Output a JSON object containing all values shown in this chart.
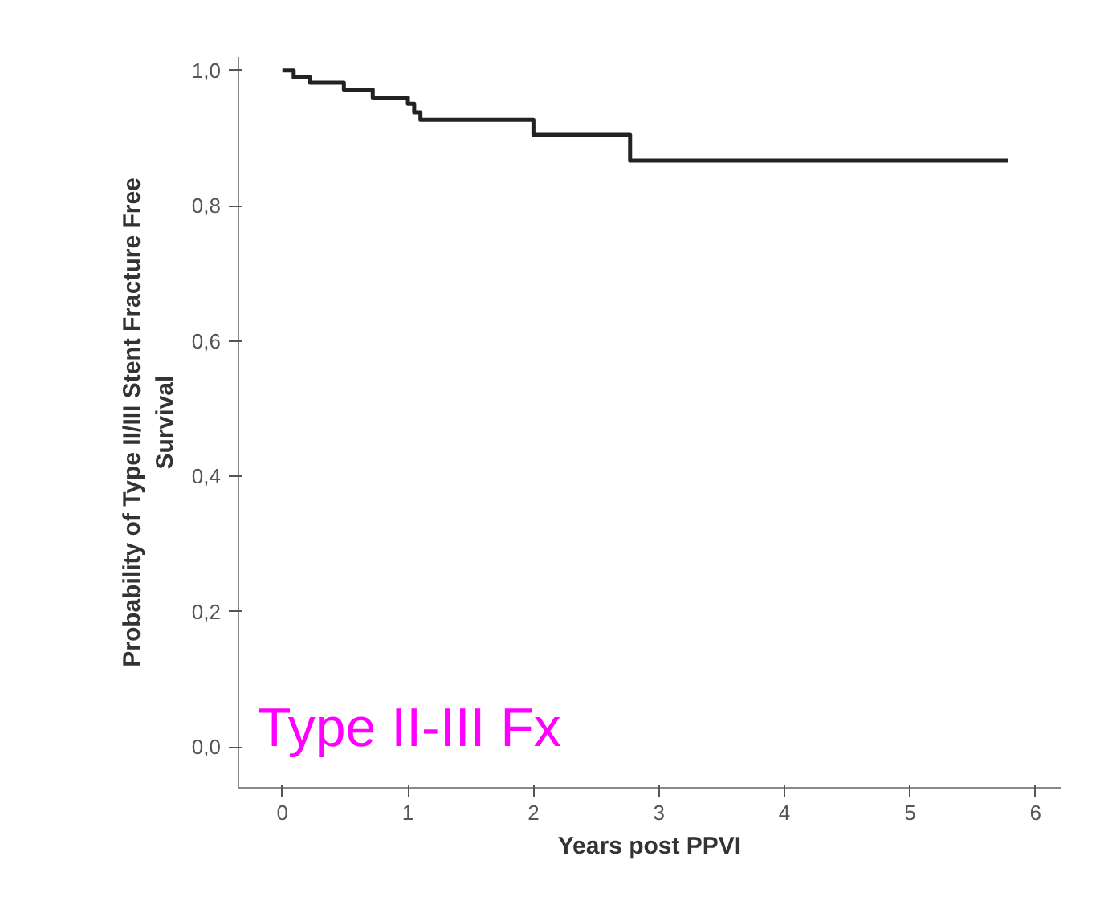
{
  "chart_data": {
    "type": "step",
    "xlabel": "Years post PPVI",
    "ylabel": "Probability of Type II/III Stent Fracture Free\nSurvival",
    "x": [
      0,
      0.09,
      0.22,
      0.49,
      0.72,
      1.0,
      1.05,
      1.1,
      2.0,
      2.77,
      5.78
    ],
    "series": [
      {
        "color": "#222222",
        "values": [
          1.0,
          0.99,
          0.982,
          0.972,
          0.96,
          0.951,
          0.938,
          0.927,
          0.905,
          0.867,
          0.867
        ]
      }
    ],
    "xlim": [
      -0.35,
      6.2
    ],
    "ylim": [
      -0.06,
      1.02
    ],
    "xticks": [
      0,
      1,
      2,
      3,
      4,
      5,
      6
    ],
    "yticks": [
      {
        "value": 0,
        "label": "0,0"
      },
      {
        "value": 0.2,
        "label": "0,2"
      },
      {
        "value": 0.4,
        "label": "0,4"
      },
      {
        "value": 0.6,
        "label": "0,6"
      },
      {
        "value": 0.8,
        "label": "0,8"
      },
      {
        "value": 1.0,
        "label": "1,0"
      }
    ],
    "annotations": [
      "Type II-III Fx"
    ]
  }
}
